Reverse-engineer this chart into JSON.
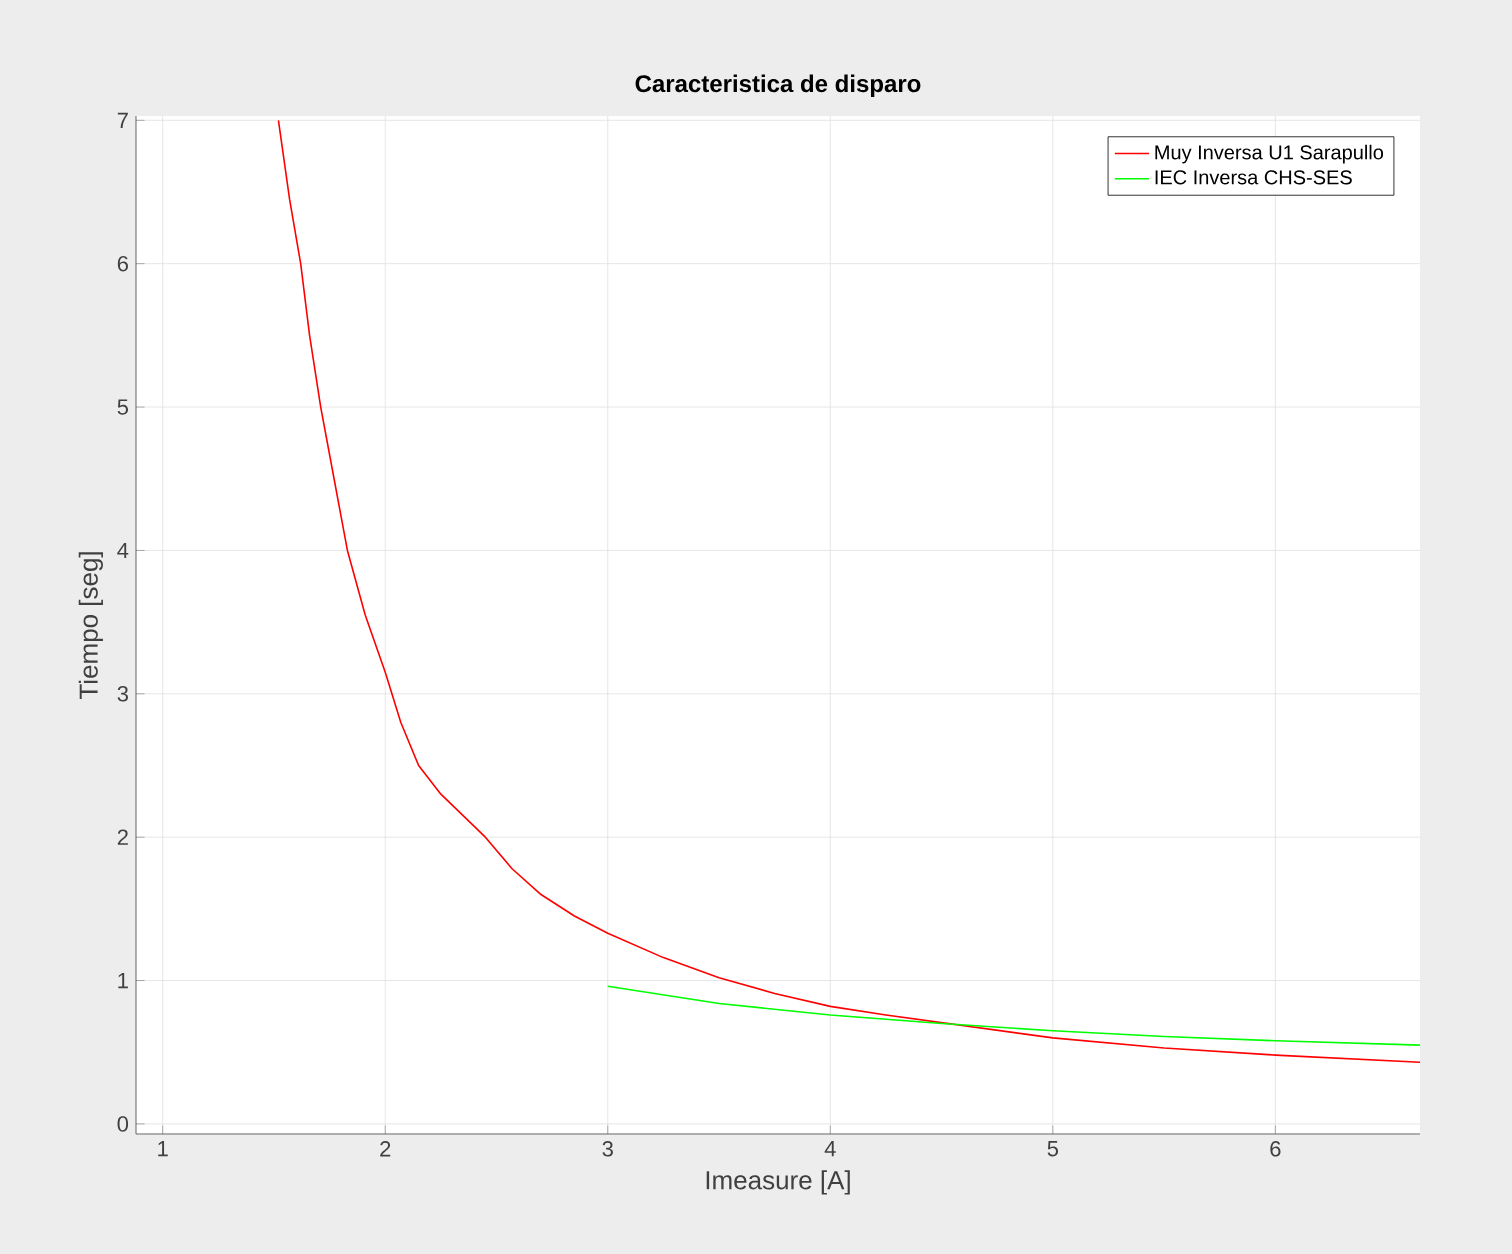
{
  "chart_data": {
    "type": "line",
    "title": "Caracteristica de disparo",
    "xlabel": "Imeasure [A]",
    "ylabel": "Tiempo [seg]",
    "xlim": [
      0.88,
      6.65
    ],
    "ylim": [
      -0.07,
      7.03
    ],
    "xticks": [
      1,
      2,
      3,
      4,
      5,
      6
    ],
    "yticks": [
      0,
      1,
      2,
      3,
      4,
      5,
      6,
      7
    ],
    "grid": true,
    "legend": "top right",
    "series": [
      {
        "name": "Muy Inversa U1 Sarapullo",
        "color": "#ff0000",
        "x": [
          1.52,
          1.57,
          1.62,
          1.66,
          1.71,
          1.77,
          1.83,
          1.91,
          2.0,
          2.07,
          2.15,
          2.25,
          2.35,
          2.45,
          2.57,
          2.7,
          2.85,
          3.0,
          3.25,
          3.5,
          3.75,
          4.0,
          4.25,
          5.0,
          5.5,
          6.0,
          6.65
        ],
        "values": [
          7.0,
          6.45,
          6.0,
          5.5,
          5.0,
          4.5,
          4.0,
          3.55,
          3.15,
          2.8,
          2.5,
          2.3,
          2.15,
          2.0,
          1.78,
          1.6,
          1.45,
          1.33,
          1.16,
          1.02,
          0.91,
          0.82,
          0.76,
          0.6,
          0.53,
          0.48,
          0.43
        ]
      },
      {
        "name": "IEC Inversa CHS-SES",
        "color": "#00ff00",
        "x": [
          3.0,
          3.5,
          4.0,
          4.5,
          5.0,
          5.5,
          6.0,
          6.65
        ],
        "values": [
          0.96,
          0.84,
          0.76,
          0.7,
          0.65,
          0.61,
          0.58,
          0.55
        ]
      }
    ]
  }
}
